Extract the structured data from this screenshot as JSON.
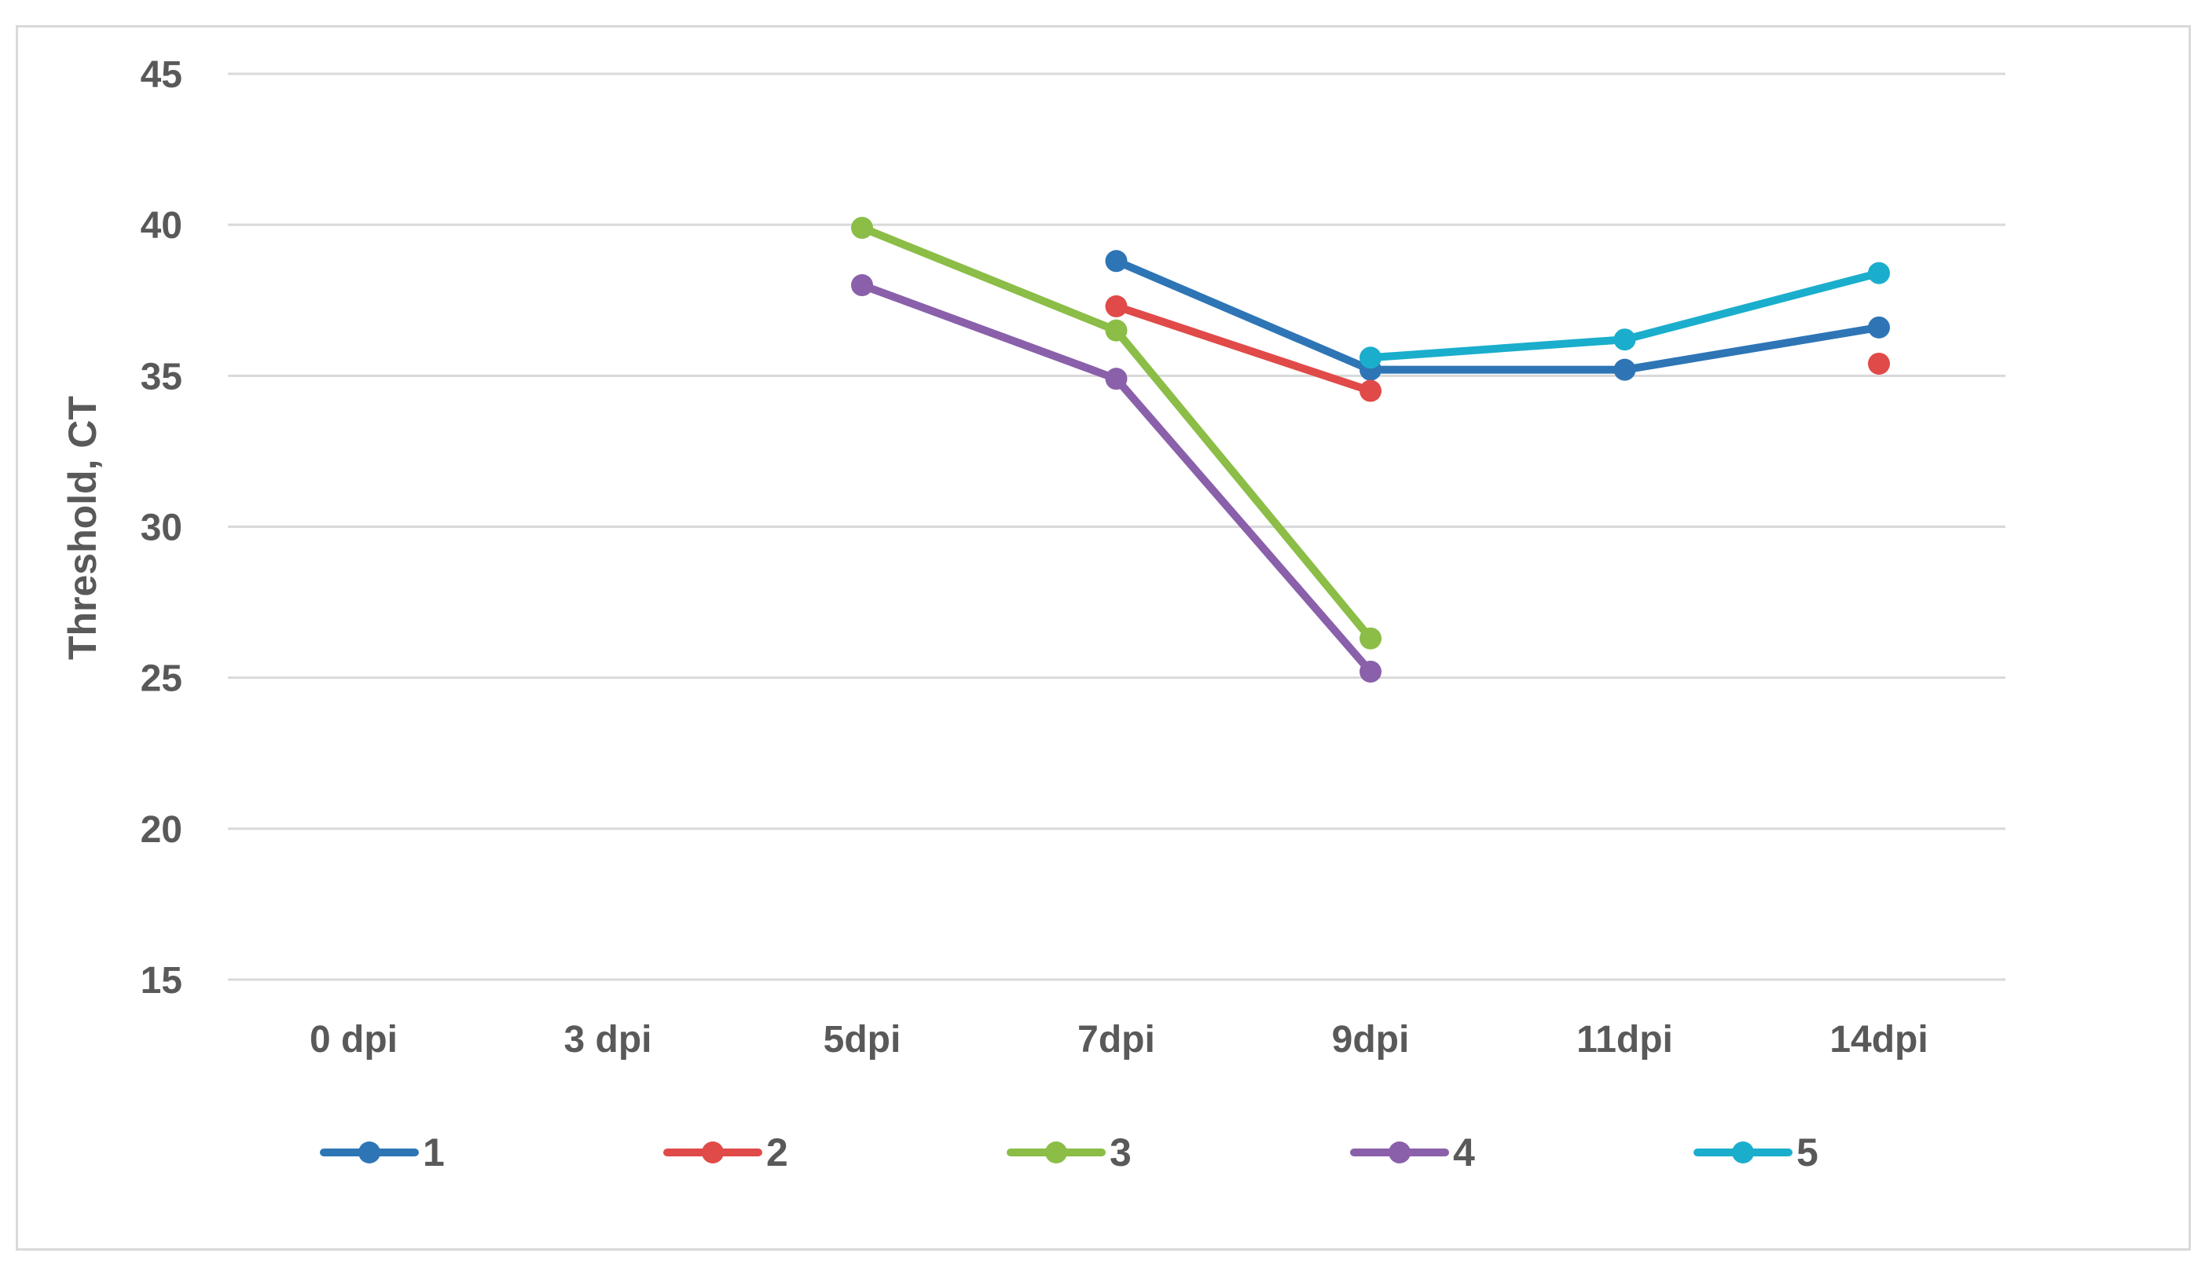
{
  "chart_data": {
    "type": "line",
    "ylabel": "Threshold, CT",
    "categories": [
      "0 dpi",
      "3 dpi",
      "5dpi",
      "7dpi",
      "9dpi",
      "11dpi",
      "14dpi"
    ],
    "ylim": [
      15,
      45
    ],
    "yticks": [
      15,
      20,
      25,
      30,
      35,
      40,
      45
    ],
    "grid": true,
    "legend_position": "bottom",
    "series": [
      {
        "name": "1",
        "color": "#2e75b6",
        "values": [
          null,
          null,
          null,
          38.8,
          35.2,
          35.2,
          36.6
        ]
      },
      {
        "name": "2",
        "color": "#e04a48",
        "values": [
          null,
          null,
          null,
          37.3,
          34.5,
          null,
          35.4
        ]
      },
      {
        "name": "3",
        "color": "#8bbd47",
        "values": [
          null,
          null,
          39.9,
          36.5,
          26.3,
          null,
          null
        ]
      },
      {
        "name": "4",
        "color": "#8a60aa",
        "values": [
          null,
          null,
          38.0,
          34.9,
          25.2,
          null,
          null
        ]
      },
      {
        "name": "5",
        "color": "#1aaecc",
        "values": [
          null,
          null,
          null,
          null,
          35.6,
          36.2,
          38.4
        ]
      }
    ]
  }
}
